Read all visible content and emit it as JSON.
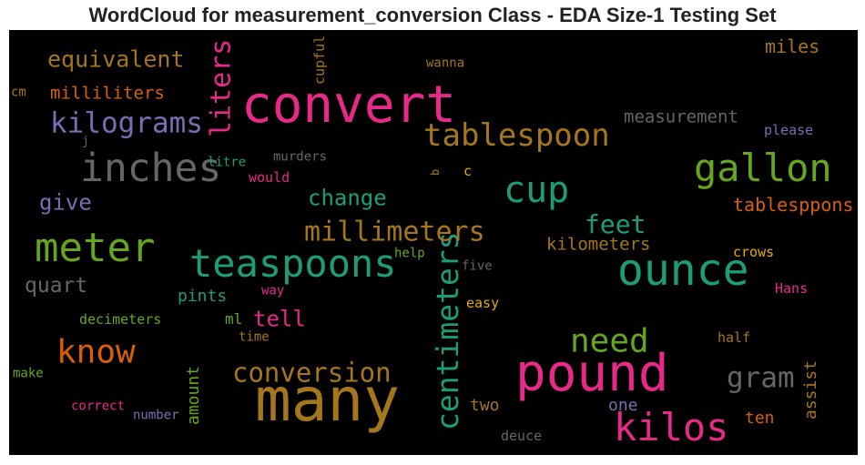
{
  "chart_data": {
    "type": "wordcloud",
    "title": "WordCloud for measurement_conversion Class - EDA Size-1 Testing Set",
    "background": "#000000",
    "words": [
      {
        "text": "convert",
        "color": "#e7298a"
      },
      {
        "text": "many",
        "color": "#a6761d"
      },
      {
        "text": "pound",
        "color": "#e7298a"
      },
      {
        "text": "ounce",
        "color": "#1b9e77"
      },
      {
        "text": "inches",
        "color": "#666666"
      },
      {
        "text": "meter",
        "color": "#66a61e"
      },
      {
        "text": "teaspoons",
        "color": "#1b9e77"
      },
      {
        "text": "gallon",
        "color": "#66a61e"
      },
      {
        "text": "kilos",
        "color": "#e7298a"
      },
      {
        "text": "cup",
        "color": "#1b9e77"
      },
      {
        "text": "tablespoon",
        "color": "#a6761d"
      },
      {
        "text": "kilograms",
        "color": "#7570b3"
      },
      {
        "text": "know",
        "color": "#d95f02"
      },
      {
        "text": "need",
        "color": "#66a61e"
      },
      {
        "text": "centimeters",
        "color": "#1b9e77"
      },
      {
        "text": "liters",
        "color": "#e7298a"
      },
      {
        "text": "conversion",
        "color": "#a6761d"
      },
      {
        "text": "millimeters",
        "color": "#a6761d"
      },
      {
        "text": "gram",
        "color": "#666666"
      },
      {
        "text": "feet",
        "color": "#1b9e77"
      },
      {
        "text": "equivalent",
        "color": "#a6761d"
      },
      {
        "text": "change",
        "color": "#1b9e77"
      },
      {
        "text": "give",
        "color": "#7570b3"
      },
      {
        "text": "quart",
        "color": "#666666"
      },
      {
        "text": "tell",
        "color": "#e7298a"
      },
      {
        "text": "measurement",
        "color": "#666666"
      },
      {
        "text": "milliliters",
        "color": "#d95f02"
      },
      {
        "text": "kilometers",
        "color": "#a6761d"
      },
      {
        "text": "tablesppons",
        "color": "#d95f02"
      },
      {
        "text": "miles",
        "color": "#a6761d"
      },
      {
        "text": "pints",
        "color": "#1b9e77"
      },
      {
        "text": "amount",
        "color": "#66a61e"
      },
      {
        "text": "assist",
        "color": "#a6761d"
      },
      {
        "text": "ten",
        "color": "#d95f02"
      },
      {
        "text": "two",
        "color": "#a6761d"
      },
      {
        "text": "one",
        "color": "#7570b3"
      },
      {
        "text": "ml",
        "color": "#66a61e"
      },
      {
        "text": "decimeters",
        "color": "#66a61e"
      },
      {
        "text": "please",
        "color": "#7570b3"
      },
      {
        "text": "crows",
        "color": "#e6ab02"
      },
      {
        "text": "Hans",
        "color": "#e7298a"
      },
      {
        "text": "half",
        "color": "#a6761d"
      },
      {
        "text": "murders",
        "color": "#666666"
      },
      {
        "text": "would",
        "color": "#e7298a"
      },
      {
        "text": "litre",
        "color": "#1b9e77"
      },
      {
        "text": "cupful",
        "color": "#a6761d"
      },
      {
        "text": "wanna",
        "color": "#a6761d"
      },
      {
        "text": "help",
        "color": "#66a61e"
      },
      {
        "text": "five",
        "color": "#666666"
      },
      {
        "text": "way",
        "color": "#e7298a"
      },
      {
        "text": "easy",
        "color": "#e6ab02"
      },
      {
        "text": "time",
        "color": "#a6761d"
      },
      {
        "text": "make",
        "color": "#66a61e"
      },
      {
        "text": "correct",
        "color": "#e7298a"
      },
      {
        "text": "number",
        "color": "#7570b3"
      },
      {
        "text": "deuce",
        "color": "#666666"
      },
      {
        "text": "cm",
        "color": "#a6761d"
      },
      {
        "text": "j",
        "color": "#666666"
      },
      {
        "text": "b",
        "color": "#a6761d"
      },
      {
        "text": "c",
        "color": "#e6ab02"
      }
    ]
  }
}
